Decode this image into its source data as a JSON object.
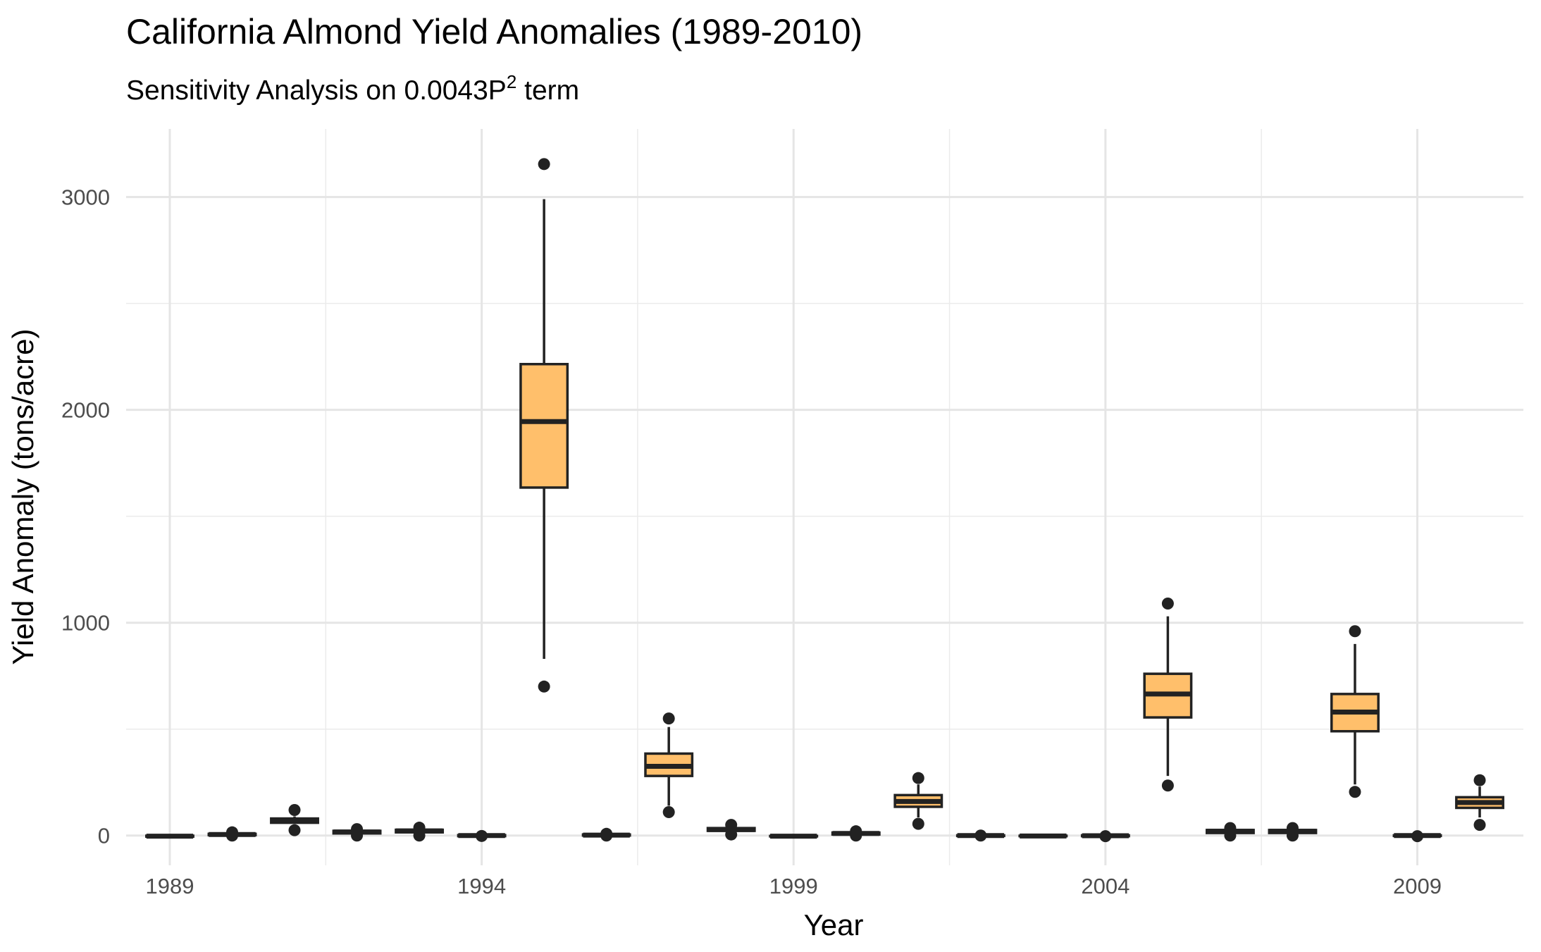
{
  "chart_data": {
    "type": "box",
    "title": "California Almond Yield Anomalies (1989-2010)",
    "subtitle": {
      "text": "Sensitivity Analysis on 0.0043P",
      "superscript": "2",
      "suffix": " term"
    },
    "xlabel": "Year",
    "ylabel": "Yield Anomaly (tons/acre)",
    "x_ticks": [
      1989,
      1994,
      1999,
      2004,
      2009
    ],
    "y_ticks": [
      0,
      1000,
      2000,
      3000
    ],
    "ylim": [
      -140,
      3320
    ],
    "xlim": [
      1988.3,
      2010.7
    ],
    "grid": true,
    "legend": "none",
    "fill_color": "#FFBF6B",
    "line_color": "#222222",
    "boxes": [
      {
        "year": 1989,
        "whisker_low": -5,
        "q1": -5,
        "median": -3,
        "q3": -1,
        "whisker_high": 0,
        "outliers": []
      },
      {
        "year": 1990,
        "whisker_low": 0,
        "q1": 2,
        "median": 5,
        "q3": 8,
        "whisker_high": 12,
        "outliers": [
          0,
          15
        ]
      },
      {
        "year": 1991,
        "whisker_low": 55,
        "q1": 60,
        "median": 70,
        "q3": 80,
        "whisker_high": 90,
        "outliers": [
          25,
          120
        ]
      },
      {
        "year": 1992,
        "whisker_low": 5,
        "q1": 10,
        "median": 17,
        "q3": 22,
        "whisker_high": 27,
        "outliers": [
          0,
          30
        ]
      },
      {
        "year": 1993,
        "whisker_low": 10,
        "q1": 15,
        "median": 22,
        "q3": 27,
        "whisker_high": 33,
        "outliers": [
          0,
          37
        ]
      },
      {
        "year": 1994,
        "whisker_low": -5,
        "q1": -3,
        "median": 0,
        "q3": 2,
        "whisker_high": 5,
        "outliers": [
          -2
        ]
      },
      {
        "year": 1995,
        "whisker_low": 830,
        "q1": 1635,
        "median": 1945,
        "q3": 2215,
        "whisker_high": 2990,
        "outliers": [
          700,
          3155
        ]
      },
      {
        "year": 1996,
        "whisker_low": -2,
        "q1": 0,
        "median": 2,
        "q3": 5,
        "whisker_high": 8,
        "outliers": [
          0,
          8
        ]
      },
      {
        "year": 1997,
        "whisker_low": 140,
        "q1": 280,
        "median": 325,
        "q3": 385,
        "whisker_high": 510,
        "outliers": [
          110,
          550
        ]
      },
      {
        "year": 1998,
        "whisker_low": 15,
        "q1": 22,
        "median": 28,
        "q3": 35,
        "whisker_high": 42,
        "outliers": [
          5,
          50
        ]
      },
      {
        "year": 1999,
        "whisker_low": -5,
        "q1": -4,
        "median": -3,
        "q3": -2,
        "whisker_high": -1,
        "outliers": []
      },
      {
        "year": 2000,
        "whisker_low": 0,
        "q1": 5,
        "median": 10,
        "q3": 14,
        "whisker_high": 18,
        "outliers": [
          0,
          20
        ]
      },
      {
        "year": 2001,
        "whisker_low": 85,
        "q1": 135,
        "median": 160,
        "q3": 190,
        "whisker_high": 240,
        "outliers": [
          55,
          270
        ]
      },
      {
        "year": 2002,
        "whisker_low": -3,
        "q1": -2,
        "median": 0,
        "q3": 1,
        "whisker_high": 2,
        "outliers": [
          0
        ]
      },
      {
        "year": 2003,
        "whisker_low": -4,
        "q1": -3,
        "median": -2,
        "q3": -1,
        "whisker_high": 0,
        "outliers": []
      },
      {
        "year": 2004,
        "whisker_low": -4,
        "q1": -3,
        "median": -1,
        "q3": 1,
        "whisker_high": 2,
        "outliers": [
          -3
        ]
      },
      {
        "year": 2005,
        "whisker_low": 280,
        "q1": 555,
        "median": 665,
        "q3": 760,
        "whisker_high": 1030,
        "outliers": [
          235,
          1090
        ]
      },
      {
        "year": 2006,
        "whisker_low": 5,
        "q1": 12,
        "median": 20,
        "q3": 26,
        "whisker_high": 32,
        "outliers": [
          0,
          35
        ]
      },
      {
        "year": 2007,
        "whisker_low": 5,
        "q1": 12,
        "median": 20,
        "q3": 26,
        "whisker_high": 32,
        "outliers": [
          0,
          35
        ]
      },
      {
        "year": 2008,
        "whisker_low": 240,
        "q1": 490,
        "median": 580,
        "q3": 665,
        "whisker_high": 900,
        "outliers": [
          205,
          960
        ]
      },
      {
        "year": 2009,
        "whisker_low": -2,
        "q1": -2,
        "median": 0,
        "q3": 1,
        "whisker_high": 2,
        "outliers": [
          -3
        ]
      },
      {
        "year": 2010,
        "whisker_low": 85,
        "q1": 130,
        "median": 155,
        "q3": 180,
        "whisker_high": 230,
        "outliers": [
          50,
          260
        ]
      }
    ]
  }
}
